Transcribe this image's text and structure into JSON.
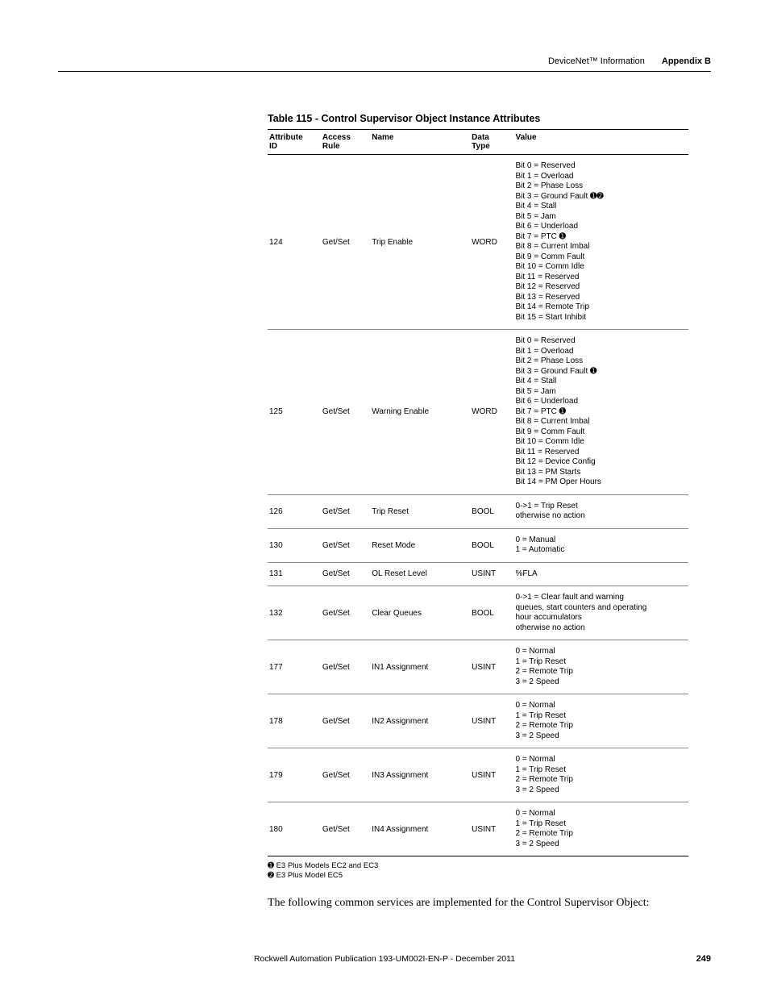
{
  "header": {
    "section": "DeviceNet™ Information",
    "appendix": "Appendix B"
  },
  "table": {
    "caption": "Table 115 - Control Supervisor Object Instance Attributes",
    "columns": [
      "Attribute ID",
      "Access Rule",
      "Name",
      "Data Type",
      "Value"
    ],
    "rows": [
      {
        "id": "124",
        "rule": "Get/Set",
        "name": "Trip Enable",
        "type": "WORD",
        "value_lines": [
          "Bit 0 = Reserved",
          "Bit 1 = Overload",
          "Bit 2 = Phase Loss",
          "Bit 3 = Ground Fault ➊➋",
          "Bit 4 = Stall",
          "Bit 5 = Jam",
          "Bit 6 = Underload",
          "Bit 7 = PTC ➊",
          "Bit 8 = Current Imbal",
          "Bit 9 = Comm Fault",
          "Bit 10 = Comm Idle",
          "Bit 11 = Reserved",
          "Bit 12 = Reserved",
          "Bit 13 = Reserved",
          "Bit 14 = Remote Trip",
          "Bit 15 = Start Inhibit"
        ]
      },
      {
        "id": "125",
        "rule": "Get/Set",
        "name": "Warning Enable",
        "type": "WORD",
        "value_lines": [
          "Bit 0 = Reserved",
          "Bit 1 = Overload",
          "Bit 2 = Phase Loss",
          "Bit 3 = Ground Fault ➊",
          "Bit 4 = Stall",
          "Bit 5 = Jam",
          "Bit 6 = Underload",
          "Bit 7 = PTC  ➊",
          "Bit 8 = Current Imbal",
          "Bit 9 = Comm Fault",
          "Bit 10 = Comm Idle",
          "Bit 11 = Reserved",
          "Bit 12 = Device Config",
          "Bit 13 = PM Starts",
          "Bit 14 = PM Oper Hours"
        ]
      },
      {
        "id": "126",
        "rule": "Get/Set",
        "name": "Trip Reset",
        "type": "BOOL",
        "value_lines": [
          "0->1 = Trip Reset",
          "otherwise no action"
        ]
      },
      {
        "id": "130",
        "rule": "Get/Set",
        "name": "Reset Mode",
        "type": "BOOL",
        "value_lines": [
          "0 = Manual",
          "1 = Automatic"
        ]
      },
      {
        "id": "131",
        "rule": "Get/Set",
        "name": "OL Reset Level",
        "type": "USINT",
        "value_lines": [
          "%FLA"
        ]
      },
      {
        "id": "132",
        "rule": "Get/Set",
        "name": "Clear Queues",
        "type": "BOOL",
        "value_lines": [
          "0->1 = Clear fault and warning",
          "queues, start counters and operating",
          "hour accumulators",
          "otherwise no action"
        ]
      },
      {
        "id": "177",
        "rule": "Get/Set",
        "name": "IN1 Assignment",
        "type": "USINT",
        "value_lines": [
          "0 = Normal",
          "1 = Trip Reset",
          "2 = Remote Trip",
          "3 = 2 Speed"
        ]
      },
      {
        "id": "178",
        "rule": "Get/Set",
        "name": "IN2 Assignment",
        "type": "USINT",
        "value_lines": [
          "0 = Normal",
          "1 = Trip Reset",
          "2 = Remote Trip",
          "3 = 2 Speed"
        ]
      },
      {
        "id": "179",
        "rule": "Get/Set",
        "name": "IN3 Assignment",
        "type": "USINT",
        "value_lines": [
          "0 = Normal",
          "1 = Trip Reset",
          "2 = Remote Trip",
          "3 = 2 Speed"
        ]
      },
      {
        "id": "180",
        "rule": "Get/Set",
        "name": "IN4 Assignment",
        "type": "USINT",
        "value_lines": [
          "0 = Normal",
          "1 = Trip Reset",
          "2 = Remote Trip",
          "3 = 2 Speed"
        ]
      }
    ]
  },
  "footnotes": [
    "➊ E3 Plus Models EC2 and EC3",
    "➋ E3 Plus Model EC5"
  ],
  "body_paragraph": "The following common services are implemented for the Control Supervisor Object:",
  "footer": {
    "publication": "Rockwell Automation Publication 193-UM002I-EN-P - December 2011",
    "page": "249"
  }
}
